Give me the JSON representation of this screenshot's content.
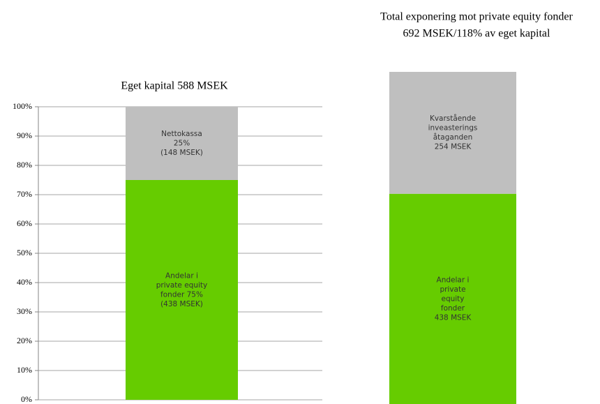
{
  "chart_data": [
    {
      "type": "bar",
      "stacked": true,
      "title": "Eget kapital 588 MSEK",
      "ylim": [
        0,
        100
      ],
      "yticks": [
        {
          "value": 0,
          "label": "0%"
        },
        {
          "value": 10,
          "label": "10%"
        },
        {
          "value": 20,
          "label": "20%"
        },
        {
          "value": 30,
          "label": "30%"
        },
        {
          "value": 40,
          "label": "40%"
        },
        {
          "value": 50,
          "label": "50%"
        },
        {
          "value": 60,
          "label": "60%"
        },
        {
          "value": 70,
          "label": "70%"
        },
        {
          "value": 80,
          "label": "80%"
        },
        {
          "value": 90,
          "label": "90%"
        },
        {
          "value": 100,
          "label": "100%"
        }
      ],
      "grid": true,
      "series": [
        {
          "color": "#66cc00",
          "values": [
            75
          ],
          "value_labels": [
            [
              "Andelar i",
              "private equity",
              "fonder 75%",
              "(438 MSEK)"
            ]
          ]
        },
        {
          "color": "#bfbfbf",
          "values": [
            25
          ],
          "value_labels": [
            [
              "Nettokassa",
              "25%",
              "(148 MSEK)"
            ]
          ]
        }
      ]
    },
    {
      "type": "bar",
      "stacked": true,
      "title": [
        "Total exponering mot private equity fonder",
        "692 MSEK/118% av eget kapital"
      ],
      "ylim": [
        0,
        692
      ],
      "grid": false,
      "series": [
        {
          "color": "#66cc00",
          "values": [
            438
          ],
          "value_labels": [
            [
              "Andelar i",
              "private",
              "equity",
              "fonder",
              "438 MSEK"
            ]
          ]
        },
        {
          "color": "#bfbfbf",
          "values": [
            254
          ],
          "value_labels": [
            [
              "Kvarstående",
              "inveasterings",
              "åtaganden",
              "254 MSEK"
            ]
          ]
        }
      ]
    }
  ]
}
